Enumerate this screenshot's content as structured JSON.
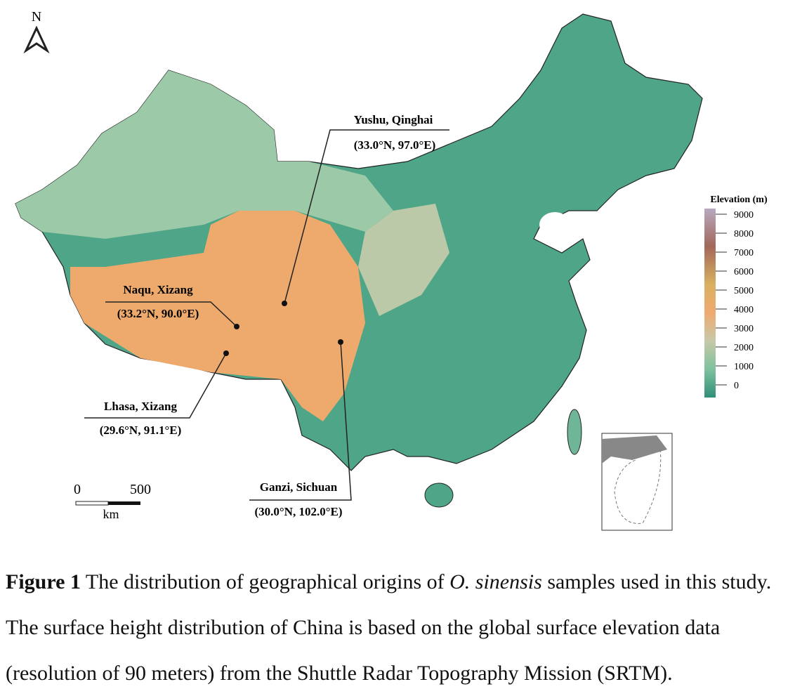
{
  "map": {
    "north": "N",
    "sites": [
      {
        "name": "Yushu, Qinghai",
        "coords": "(33.0°N, 97.0°E)"
      },
      {
        "name": "Naqu, Xizang",
        "coords": "(33.2°N, 90.0°E)"
      },
      {
        "name": "Lhasa, Xizang",
        "coords": "(29.6°N, 91.1°E)"
      },
      {
        "name": "Ganzi, Sichuan",
        "coords": "(30.0°N, 102.0°E)"
      }
    ],
    "scale": {
      "start": "0",
      "end": "500",
      "unit": "km"
    },
    "legend": {
      "title": "Elevation (m)",
      "ticks": [
        "9000",
        "8000",
        "7000",
        "6000",
        "5000",
        "4000",
        "3000",
        "2000",
        "1000",
        "0"
      ]
    }
  },
  "caption": {
    "label": "Figure 1",
    "before": "The distribution of geographical origins of",
    "species": "O. sinensis",
    "after": "samples used in this study. The surface height distribution of China is based on the global surface elevation data (resolution of 90 meters) from the Shuttle Radar Topography Mission (SRTM)."
  }
}
